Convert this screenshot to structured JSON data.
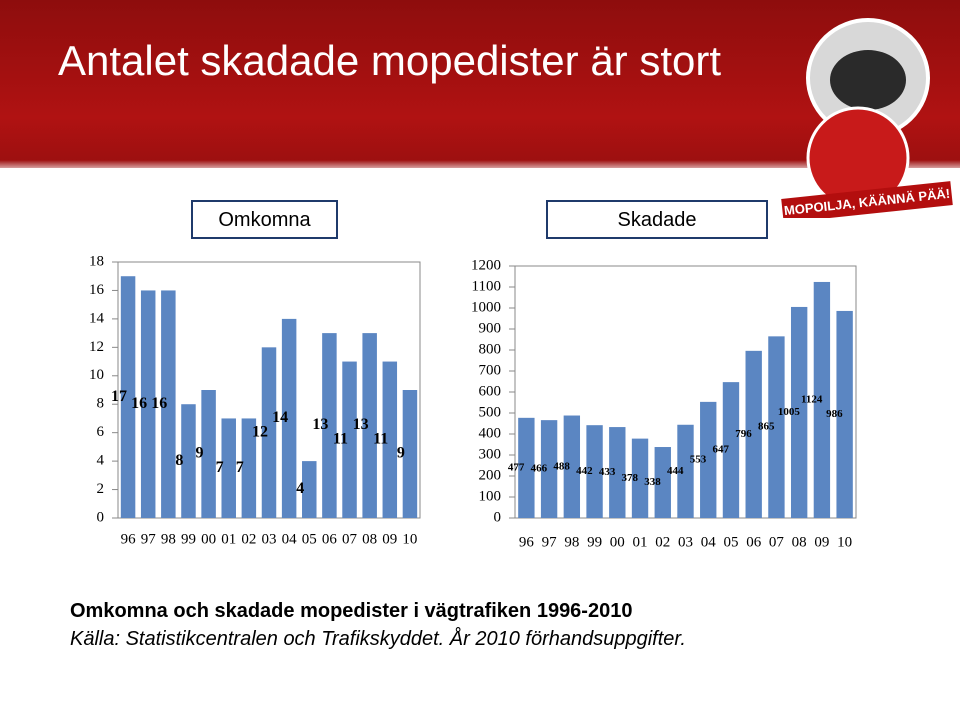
{
  "title": "Antalet skadade mopedister är stort",
  "logo_text": "MOPOILJA, KÄÄNNÄ PÄÄ!",
  "caption": "Omkomna och skadade mopedister i vägtrafiken 1996-2010",
  "source": "Källa: Statistikcentralen och Trafikskyddet. År 2010 förhandsuppgifter.",
  "chart_data": [
    {
      "type": "bar",
      "title": "Omkomna",
      "color": "#5b86c2",
      "categories": [
        "96",
        "97",
        "98",
        "99",
        "00",
        "01",
        "02",
        "03",
        "04",
        "05",
        "06",
        "07",
        "08",
        "09",
        "10"
      ],
      "values": [
        17,
        16,
        16,
        8,
        9,
        7,
        7,
        12,
        14,
        4,
        13,
        11,
        13,
        11,
        9
      ],
      "ylim": [
        0,
        18
      ],
      "yticks": [
        0,
        2,
        4,
        6,
        8,
        10,
        12,
        14,
        16,
        18
      ],
      "grid": false
    },
    {
      "type": "bar",
      "title": "Skadade",
      "color": "#5b86c2",
      "categories": [
        "96",
        "97",
        "98",
        "99",
        "00",
        "01",
        "02",
        "03",
        "04",
        "05",
        "06",
        "07",
        "08",
        "09",
        "10"
      ],
      "values": [
        477,
        466,
        488,
        442,
        433,
        378,
        338,
        444,
        553,
        647,
        796,
        865,
        1005,
        1124,
        986
      ],
      "ylim": [
        0,
        1200
      ],
      "yticks": [
        0,
        100,
        200,
        300,
        400,
        500,
        600,
        700,
        800,
        900,
        1000,
        1100,
        1200
      ],
      "grid": false
    }
  ]
}
